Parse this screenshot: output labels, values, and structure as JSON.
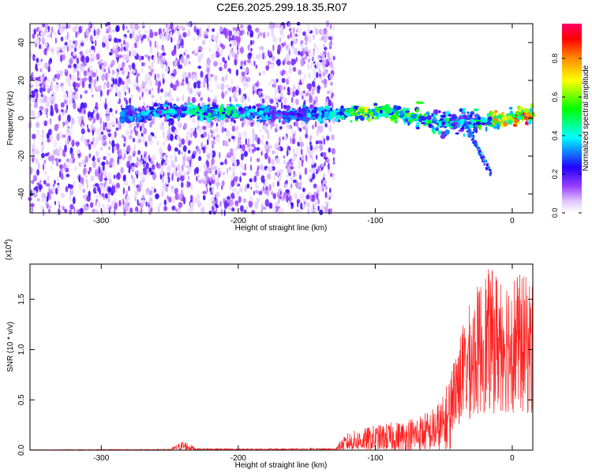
{
  "title": "C2E6.2025.299.18.35.R07",
  "chart_data": [
    {
      "type": "heatmap",
      "xlabel": "Height of straight line (km)",
      "ylabel": "Frequency (Hz)",
      "xlim": [
        -352,
        15
      ],
      "ylim": [
        -50,
        50
      ],
      "xticks": [
        -300,
        -200,
        -100,
        0
      ],
      "yticks": [
        -40,
        -20,
        0,
        20,
        40
      ],
      "colorbar": {
        "label": "Normalized spectral amplitude",
        "range": [
          0,
          0.98
        ],
        "ticks": [
          0.0,
          0.2,
          0.4,
          0.6,
          0.8
        ],
        "colors": [
          "#ffffff",
          "#cc99ff",
          "#8800ff",
          "#0000ff",
          "#00ffff",
          "#00ff00",
          "#ffff00",
          "#ff8800",
          "#ff0000",
          "#ff00ff"
        ]
      },
      "ridge": [
        {
          "x": -275,
          "y": 2,
          "amp": 0.35
        },
        {
          "x": -245,
          "y": 4,
          "amp": 0.45
        },
        {
          "x": -210,
          "y": 3,
          "amp": 0.5
        },
        {
          "x": -175,
          "y": 2,
          "amp": 0.35
        },
        {
          "x": -135,
          "y": 2,
          "amp": 0.4
        },
        {
          "x": -110,
          "y": 3,
          "amp": 0.65
        },
        {
          "x": -90,
          "y": 3,
          "amp": 0.6
        },
        {
          "x": -70,
          "y": 1,
          "amp": 0.55
        },
        {
          "x": -50,
          "y": -2,
          "amp": 0.45
        },
        {
          "x": -30,
          "y": -3,
          "amp": 0.4
        },
        {
          "x": -15,
          "y": -1,
          "amp": 0.75
        },
        {
          "x": 0,
          "y": 1,
          "amp": 0.9
        },
        {
          "x": 15,
          "y": 2,
          "amp": 0.9
        }
      ]
    },
    {
      "type": "line",
      "xlabel": "Height of straight line (km)",
      "ylabel": "SNR (10 * v/v)",
      "multiplier": "(x10^4)",
      "xlim": [
        -352,
        15
      ],
      "ylim": [
        0,
        1.85
      ],
      "xticks": [
        -300,
        -200,
        -100,
        0
      ],
      "yticks": [
        0.0,
        0.5,
        1.0,
        1.5
      ],
      "line_color": "#ff2020",
      "envelope": {
        "x": [
          -352,
          -250,
          -240,
          -230,
          -200,
          -130,
          -120,
          -100,
          -80,
          -60,
          -50,
          -40,
          -30,
          -20,
          -10,
          0,
          15
        ],
        "y_max": [
          0.005,
          0.01,
          0.1,
          0.02,
          0.015,
          0.02,
          0.18,
          0.25,
          0.3,
          0.4,
          0.55,
          1.1,
          1.5,
          1.8,
          1.8,
          1.8,
          1.7
        ]
      }
    }
  ]
}
